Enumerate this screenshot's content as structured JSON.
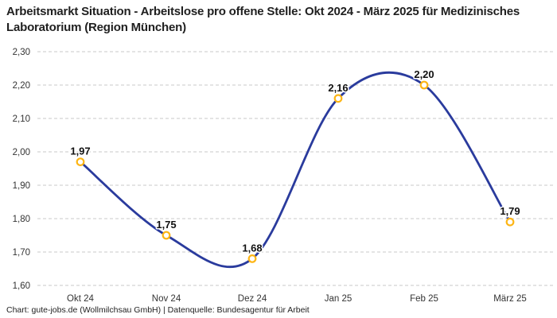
{
  "header": {
    "title": "Arbeitsmarkt Situation - Arbeitslose pro offene Stelle: Okt 2024 - März 2025 für Medizinisches Laboratorium (Region München)"
  },
  "footer": {
    "credit": "Chart: gute-jobs.de (Wollmilchsau GmbH) | Datenquelle: Bundesagentur für Arbeit"
  },
  "chart_data": {
    "type": "line",
    "title": "Arbeitsmarkt Situation - Arbeitslose pro offene Stelle: Okt 2024 - März 2025 für Medizinisches Laboratorium (Region München)",
    "categories": [
      "Okt 24",
      "Nov 24",
      "Dez 24",
      "Jan 25",
      "Feb 25",
      "März 25"
    ],
    "values": [
      1.97,
      1.75,
      1.68,
      2.16,
      2.2,
      1.79
    ],
    "value_labels": [
      "1,97",
      "1,75",
      "1,68",
      "2,16",
      "2,20",
      "1,79"
    ],
    "ytick_labels": [
      "2,30",
      "2,20",
      "2,10",
      "2,00",
      "1,90",
      "1,80",
      "1,70",
      "1,60"
    ],
    "ytick_values": [
      2.3,
      2.2,
      2.1,
      2.0,
      1.9,
      1.8,
      1.7,
      1.6
    ],
    "ylim": [
      1.6,
      2.3
    ],
    "xlabel": "",
    "ylabel": "",
    "grid": "horizontal-dashed",
    "legend": "none",
    "line_color": "#2a3b9d",
    "marker_stroke_color": "#fdb515",
    "marker_fill_color": "#ffffff",
    "grid_color": "#c8c8c8",
    "title_color": "#1f1f1f",
    "label_color": "#333333"
  }
}
